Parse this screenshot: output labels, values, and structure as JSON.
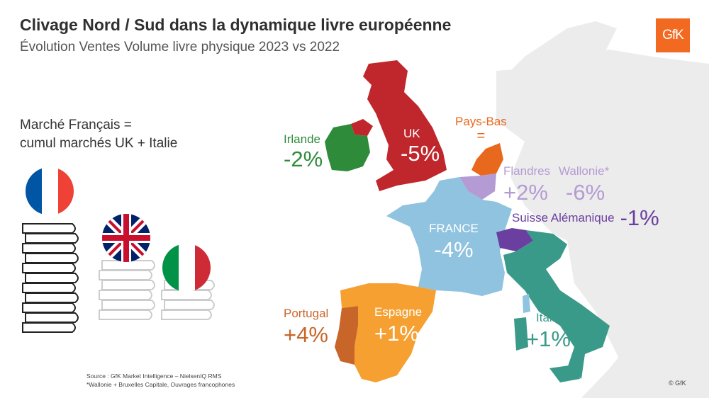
{
  "header": {
    "title": "Clivage Nord / Sud dans la dynamique livre européenne",
    "subtitle": "Évolution Ventes Volume livre physique 2023 vs 2022",
    "logo": "GfK"
  },
  "left_panel": {
    "line1": "Marché Français =",
    "line2": "cumul marchés UK + Italie"
  },
  "regions": {
    "irlande": {
      "name": "Irlande",
      "value": "-2%",
      "color": "#2e8b3a"
    },
    "uk": {
      "name": "UK",
      "value": "-5%",
      "color": "#c0272d"
    },
    "paysbas": {
      "name": "Pays-Bas",
      "value": "=",
      "color": "#e8681e"
    },
    "flandres": {
      "name": "Flandres",
      "value": "+2%",
      "color": "#b59bd3"
    },
    "wallonie": {
      "name": "Wallonie*",
      "value": "-6%",
      "color": "#b59bd3"
    },
    "suisse": {
      "name": "Suisse Alémanique",
      "value": "-1%",
      "color": "#6b3fa0"
    },
    "france": {
      "name": "FRANCE",
      "value": "-4%",
      "color": "#8fc3e0"
    },
    "portugal": {
      "name": "Portugal",
      "value": "+4%",
      "color": "#c8662a"
    },
    "espagne": {
      "name": "Espagne",
      "value": "+1%",
      "color": "#f5a030"
    },
    "italie": {
      "name": "Italie",
      "value": "+1%",
      "color": "#3a9a8a"
    }
  },
  "footer": {
    "source": "Source : GfK Market Intelligence – NielsenIQ RMS",
    "note": "*Wallonie + Bruxelles Capitale, Ouvrages francophones",
    "copyright": "© GfK"
  }
}
